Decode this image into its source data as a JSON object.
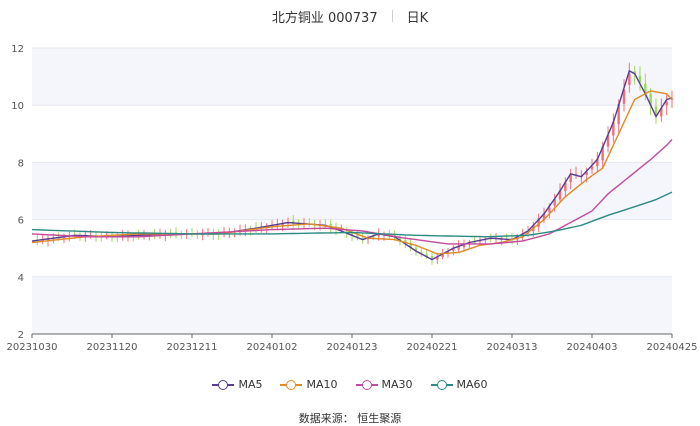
{
  "header": {
    "stock": "北方铜业 000737",
    "period": "日K"
  },
  "source_text": "数据来源： 恒生聚源",
  "chart_data": {
    "type": "candlestick",
    "ylim": [
      2,
      12
    ],
    "yticks": [
      2,
      4,
      6,
      8,
      10,
      12
    ],
    "xtick_labels": [
      "20231030",
      "20231120",
      "20231211",
      "20240102",
      "20240123",
      "20240221",
      "20240313",
      "20240403",
      "20240425"
    ],
    "xtick_index": [
      0,
      15,
      30,
      45,
      60,
      75,
      90,
      105,
      120
    ],
    "n_days": 121,
    "up_color": "#f0707a",
    "down_color": "#9fd85a",
    "ma_series": [
      {
        "name": "MA5",
        "color": "#5a3c92",
        "values": [
          [
            0,
            5.25
          ],
          [
            8,
            5.45
          ],
          [
            15,
            5.4
          ],
          [
            25,
            5.5
          ],
          [
            35,
            5.5
          ],
          [
            42,
            5.7
          ],
          [
            48,
            5.9
          ],
          [
            55,
            5.8
          ],
          [
            58,
            5.6
          ],
          [
            62,
            5.3
          ],
          [
            65,
            5.5
          ],
          [
            68,
            5.4
          ],
          [
            72,
            4.9
          ],
          [
            75,
            4.6
          ],
          [
            79,
            5.0
          ],
          [
            82,
            5.2
          ],
          [
            86,
            5.35
          ],
          [
            90,
            5.3
          ],
          [
            93,
            5.6
          ],
          [
            96,
            6.2
          ],
          [
            99,
            7.0
          ],
          [
            101,
            7.6
          ],
          [
            103,
            7.5
          ],
          [
            106,
            8.1
          ],
          [
            109,
            9.4
          ],
          [
            111,
            10.6
          ],
          [
            112,
            11.2
          ],
          [
            113,
            11.1
          ],
          [
            115,
            10.4
          ],
          [
            117,
            9.6
          ],
          [
            119,
            10.2
          ],
          [
            121,
            10.3
          ]
        ]
      },
      {
        "name": "MA10",
        "color": "#e08a2a",
        "values": [
          [
            0,
            5.2
          ],
          [
            10,
            5.4
          ],
          [
            20,
            5.5
          ],
          [
            35,
            5.5
          ],
          [
            45,
            5.75
          ],
          [
            52,
            5.85
          ],
          [
            58,
            5.7
          ],
          [
            63,
            5.35
          ],
          [
            68,
            5.3
          ],
          [
            72,
            5.1
          ],
          [
            76,
            4.8
          ],
          [
            80,
            4.85
          ],
          [
            84,
            5.1
          ],
          [
            88,
            5.2
          ],
          [
            92,
            5.4
          ],
          [
            96,
            6.0
          ],
          [
            100,
            6.8
          ],
          [
            104,
            7.4
          ],
          [
            107,
            7.8
          ],
          [
            110,
            9.0
          ],
          [
            113,
            10.2
          ],
          [
            116,
            10.5
          ],
          [
            119,
            10.4
          ],
          [
            121,
            10.0
          ]
        ]
      },
      {
        "name": "MA30",
        "color": "#c44a9e",
        "values": [
          [
            0,
            5.5
          ],
          [
            10,
            5.4
          ],
          [
            20,
            5.4
          ],
          [
            30,
            5.5
          ],
          [
            45,
            5.65
          ],
          [
            55,
            5.7
          ],
          [
            62,
            5.6
          ],
          [
            70,
            5.35
          ],
          [
            78,
            5.15
          ],
          [
            86,
            5.15
          ],
          [
            92,
            5.25
          ],
          [
            97,
            5.5
          ],
          [
            101,
            5.9
          ],
          [
            105,
            6.3
          ],
          [
            108,
            6.9
          ],
          [
            112,
            7.5
          ],
          [
            116,
            8.1
          ],
          [
            119,
            8.6
          ],
          [
            121,
            9.0
          ]
        ]
      },
      {
        "name": "MA60",
        "color": "#2b8a84",
        "values": [
          [
            0,
            5.65
          ],
          [
            15,
            5.55
          ],
          [
            30,
            5.5
          ],
          [
            45,
            5.5
          ],
          [
            60,
            5.55
          ],
          [
            72,
            5.45
          ],
          [
            85,
            5.4
          ],
          [
            93,
            5.45
          ],
          [
            98,
            5.6
          ],
          [
            103,
            5.8
          ],
          [
            108,
            6.15
          ],
          [
            113,
            6.45
          ],
          [
            117,
            6.7
          ],
          [
            121,
            7.05
          ]
        ]
      }
    ]
  }
}
